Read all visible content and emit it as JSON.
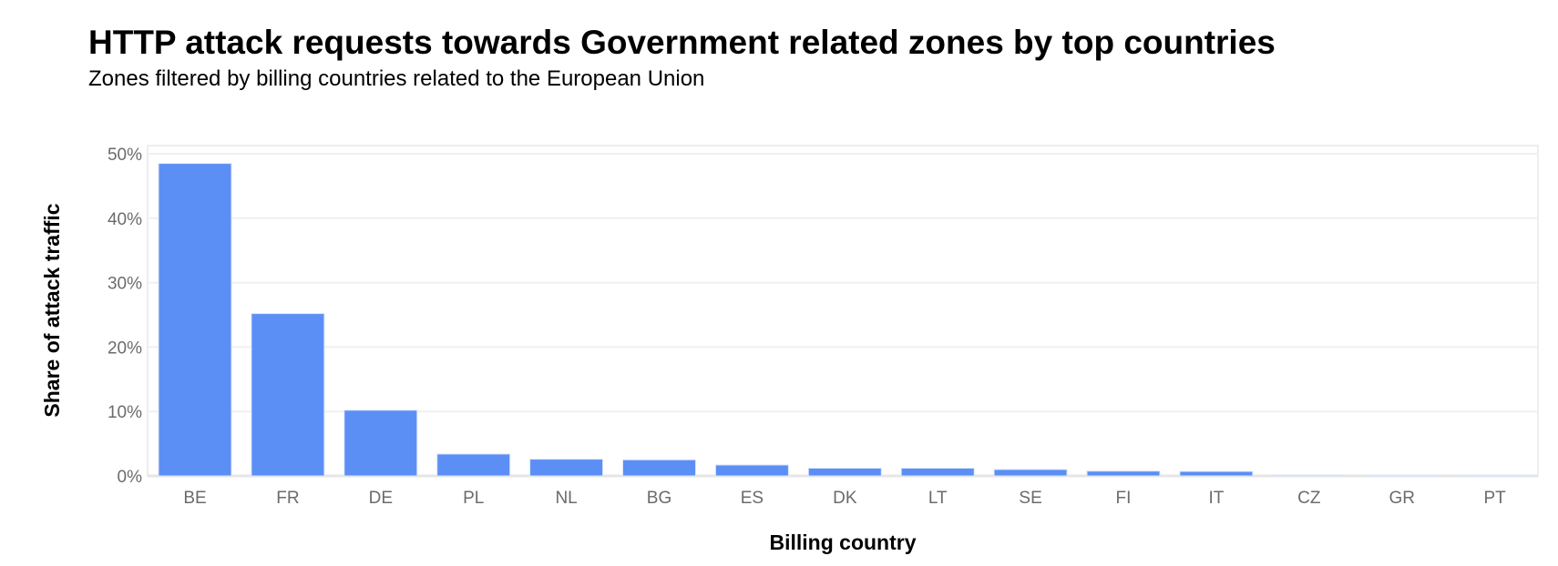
{
  "chart_data": {
    "type": "bar",
    "title": "HTTP attack requests towards Government related zones by top countries",
    "subtitle": "Zones filtered by billing countries related to the European Union",
    "xlabel": "Billing country",
    "ylabel": "Share of attack traffic",
    "categories": [
      "BE",
      "FR",
      "DE",
      "PL",
      "NL",
      "BG",
      "ES",
      "DK",
      "LT",
      "SE",
      "FI",
      "IT",
      "CZ",
      "GR",
      "PT"
    ],
    "values": [
      48.5,
      25.2,
      10.2,
      3.4,
      2.6,
      2.5,
      1.7,
      1.2,
      1.2,
      1.0,
      0.75,
      0.7,
      0.15,
      0.05,
      0.05
    ],
    "ylim": [
      0,
      50
    ],
    "yticks": [
      "0%",
      "10%",
      "20%",
      "30%",
      "40%",
      "50%"
    ],
    "ytick_values": [
      0,
      10,
      20,
      30,
      40,
      50
    ],
    "grid": true,
    "bar_color": "#5b8ff5"
  }
}
